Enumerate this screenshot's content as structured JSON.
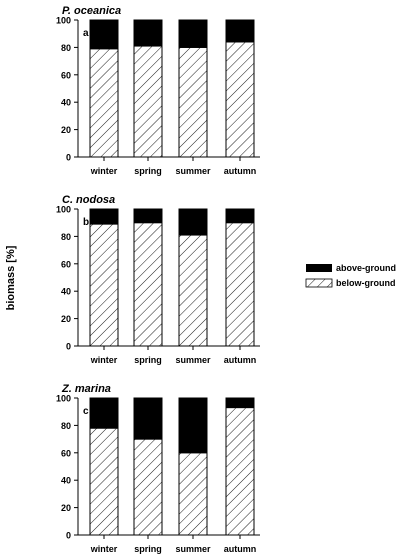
{
  "ylabel": "biomass [%]",
  "legend": {
    "above": "above-ground",
    "below": "below-ground"
  },
  "colors": {
    "above": "#000000",
    "below_hatch": "#000000",
    "background": "#ffffff"
  },
  "chart_data": [
    {
      "type": "bar",
      "stacked": true,
      "title": "P. oceanica",
      "panel": "a",
      "categories": [
        "winter",
        "spring",
        "summer",
        "autumn"
      ],
      "ylim": [
        0,
        100
      ],
      "yticks": [
        "0",
        "20",
        "40",
        "60",
        "80",
        "100"
      ],
      "series": [
        {
          "name": "below-ground",
          "values": [
            79,
            81,
            80,
            84
          ]
        },
        {
          "name": "above-ground",
          "values": [
            21,
            19,
            20,
            16
          ]
        }
      ]
    },
    {
      "type": "bar",
      "stacked": true,
      "title": "C. nodosa",
      "panel": "b",
      "categories": [
        "winter",
        "spring",
        "summer",
        "autumn"
      ],
      "ylim": [
        0,
        100
      ],
      "yticks": [
        "0",
        "20",
        "40",
        "60",
        "80",
        "100"
      ],
      "series": [
        {
          "name": "below-ground",
          "values": [
            89,
            90,
            81,
            90
          ]
        },
        {
          "name": "above-ground",
          "values": [
            11,
            10,
            19,
            10
          ]
        }
      ]
    },
    {
      "type": "bar",
      "stacked": true,
      "title": "Z. marina",
      "panel": "c",
      "categories": [
        "winter",
        "spring",
        "summer",
        "autumn"
      ],
      "ylim": [
        0,
        100
      ],
      "yticks": [
        "0",
        "20",
        "40",
        "60",
        "80",
        "100"
      ],
      "series": [
        {
          "name": "below-ground",
          "values": [
            78,
            70,
            60,
            93
          ]
        },
        {
          "name": "above-ground",
          "values": [
            22,
            30,
            40,
            7
          ]
        }
      ]
    }
  ]
}
